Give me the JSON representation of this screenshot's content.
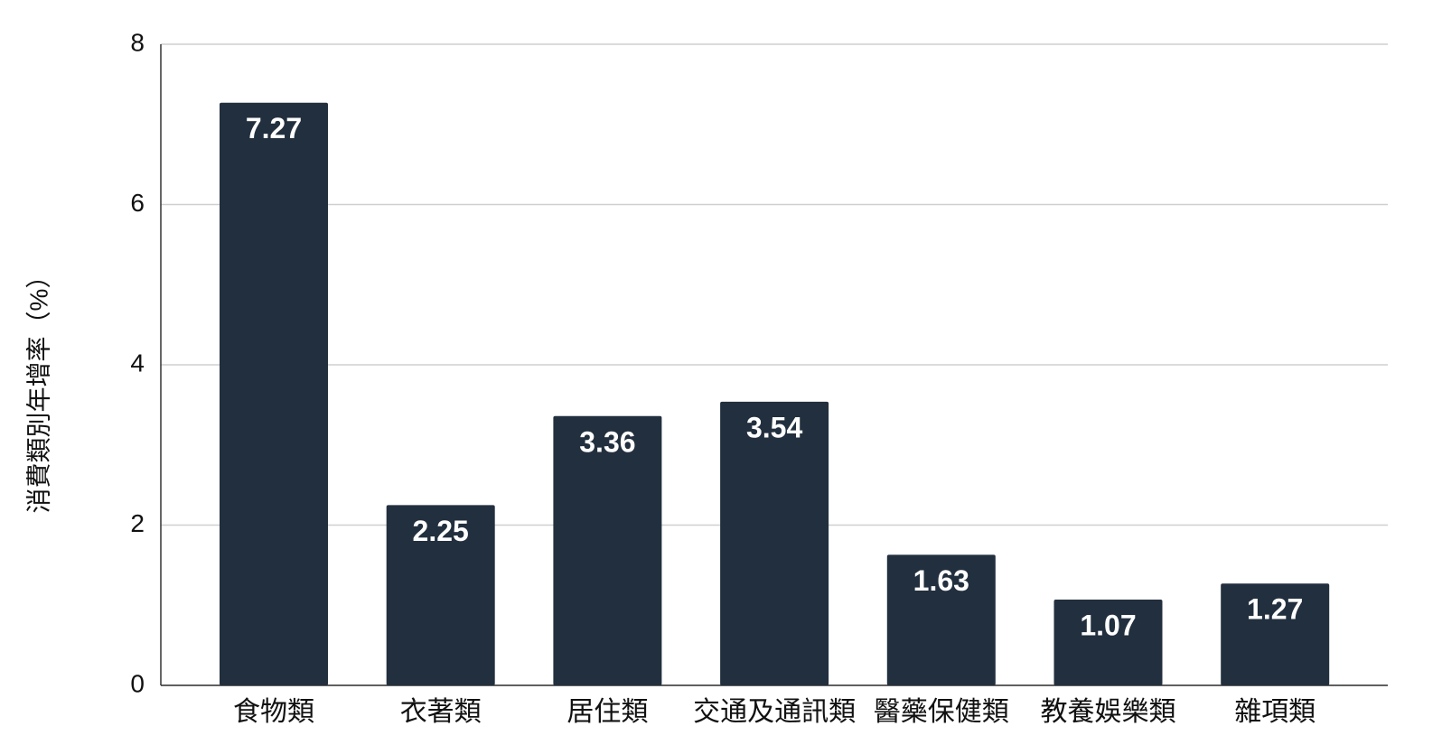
{
  "chart_data": {
    "type": "bar",
    "y_label": "消費類別年增率（%）",
    "categories": [
      "食物類",
      "衣著類",
      "居住類",
      "交通及通訊類",
      "醫藥保健類",
      "教養娛樂類",
      "雜項類"
    ],
    "values": [
      7.27,
      2.25,
      3.36,
      3.54,
      1.63,
      1.07,
      1.27
    ],
    "color": "#222f3e",
    "ylim": [
      0,
      8
    ],
    "yticks": [
      0,
      2,
      4,
      6,
      8
    ],
    "grid": true
  }
}
